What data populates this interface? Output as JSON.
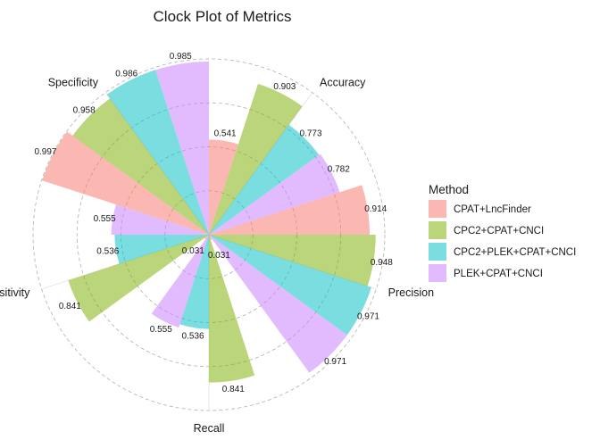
{
  "chart_data": {
    "type": "bar",
    "subtype": "polar-clock",
    "title": "Clock Plot of Metrics",
    "categories": [
      "Accuracy",
      "Precision",
      "Recall",
      "Sensitivity",
      "Specificity"
    ],
    "legend": {
      "title": "Method",
      "placement": "right"
    },
    "grid": true,
    "rlim": [
      0,
      1
    ],
    "series": [
      {
        "name": "CPAT+LncFinder",
        "color": "#F8766D",
        "values": [
          0.541,
          0.914,
          0.031,
          0.031,
          0.997
        ],
        "labels": [
          "0.541",
          "0.914",
          "0.031",
          "0.031",
          "0.997"
        ]
      },
      {
        "name": "CPC2+CPAT+CNCI",
        "color": "#7CAE00",
        "values": [
          0.903,
          0.948,
          0.841,
          0.841,
          0.958
        ],
        "labels": [
          "0.903",
          "0.948",
          "0.841",
          "0.841",
          "0.958"
        ]
      },
      {
        "name": "CPC2+PLEK+CPAT+CNCI",
        "color": "#00BFC4",
        "values": [
          0.773,
          0.971,
          0.536,
          0.536,
          0.986
        ],
        "labels": [
          "0.773",
          "0.971",
          "0.536",
          "0.536",
          "0.986"
        ]
      },
      {
        "name": "PLEK+CPAT+CNCI",
        "color": "#C77CFF",
        "values": [
          0.782,
          0.971,
          0.555,
          0.555,
          0.985
        ],
        "labels": [
          "0.782",
          "0.971",
          "0.555",
          "0.555",
          "0.985"
        ]
      }
    ]
  }
}
